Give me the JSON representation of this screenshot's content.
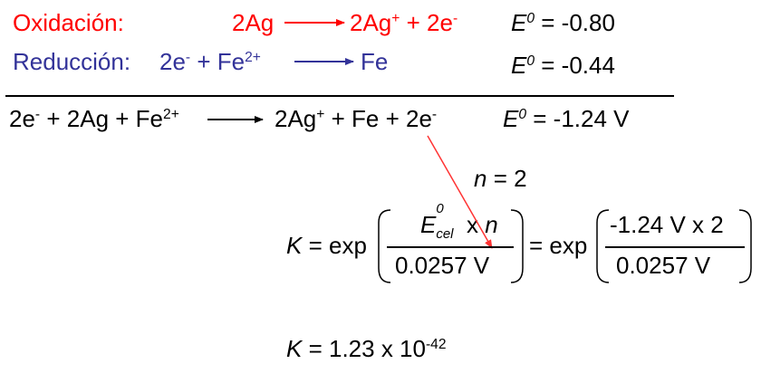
{
  "colors": {
    "oxidation": "#ff0000",
    "reduction": "#333399",
    "text": "#000000",
    "pointer": "#ff3333"
  },
  "oxidation": {
    "label": "Oxidación:",
    "reactant": "2Ag",
    "product_base": "2Ag",
    "product_charge": "+",
    "plus": "+ 2e",
    "electron_charge": "-",
    "e_symbol": "E",
    "e_sup": "0",
    "e_value": "= -0.80"
  },
  "reduction": {
    "label": "Reducción:",
    "reactant_base": "2e",
    "reactant_charge": "-",
    "reactant_plus": "+ Fe",
    "reactant_charge2": "2+",
    "product": "Fe",
    "e_symbol": "E",
    "e_sup": "0",
    "e_value": "= -0.44"
  },
  "overall": {
    "lhs_e": "2e",
    "lhs_e_charge": "-",
    "lhs_rest": "+ 2Ag + Fe",
    "lhs_fe_charge": "2+",
    "rhs_ag": "2Ag",
    "rhs_ag_charge": "+",
    "rhs_rest": "+ Fe + 2e",
    "rhs_e_charge": "-",
    "e_symbol": "E",
    "e_sup": "0",
    "e_value": "= -1.24 V"
  },
  "n_line": {
    "symbol": "n",
    "value": "= 2"
  },
  "k_equation": {
    "k": "K",
    "eq_exp": "= exp",
    "num1_e": "E",
    "num1_sup": "0",
    "num1_sub": "cel",
    "num1_x": "x",
    "num1_n": "n",
    "den1": "0.0257 V",
    "eq_exp2": "= exp",
    "num2": "-1.24 V x 2",
    "den2": "0.0257 V"
  },
  "k_result": {
    "k": "K",
    "text": "= 1.23 x 10",
    "exp": "-42"
  }
}
